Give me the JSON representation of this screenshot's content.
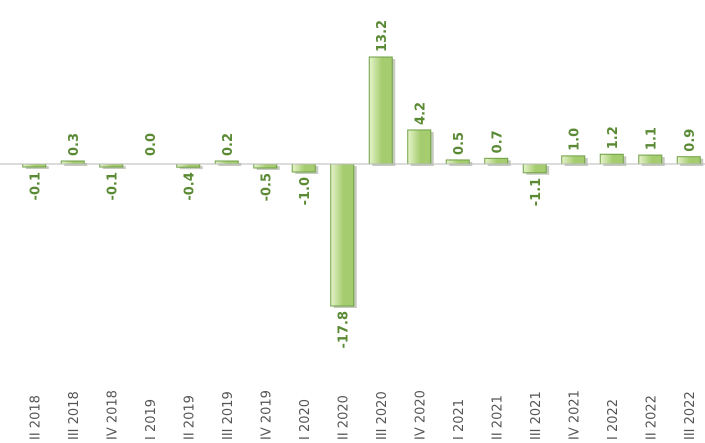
{
  "chart_data": {
    "type": "bar",
    "categories": [
      "II 2018",
      "III 2018",
      "IV 2018",
      "I 2019",
      "II 2019",
      "III 2019",
      "IV 2019",
      "I 2020",
      "II 2020",
      "III 2020",
      "IV 2020",
      "I 2021",
      "II 2021",
      "III 2021",
      "IV 2021",
      "I 2022",
      "II 2022",
      "III 2022"
    ],
    "values": [
      -0.1,
      0.3,
      -0.1,
      0.0,
      -0.4,
      0.2,
      -0.5,
      -1.0,
      -17.8,
      13.2,
      4.2,
      0.5,
      0.7,
      -1.1,
      1.0,
      1.2,
      1.1,
      0.9
    ],
    "value_labels": [
      "-0.1",
      "0.3",
      "-0.1",
      "0.0",
      "-0.4",
      "0.2",
      "-0.5",
      "-1.0",
      "-17.8",
      "13.2",
      "4.2",
      "0.5",
      "0.7",
      "-1.1",
      "1.0",
      "1.2",
      "1.1",
      "0.9"
    ],
    "ylim": [
      -17.8,
      13.2
    ],
    "grid": false,
    "colors": {
      "bar_fill_light": "#e6f4cc",
      "bar_fill_dark": "#a5cc6e",
      "bar_stroke": "#6f9f45",
      "label": "#5a8a34"
    }
  }
}
